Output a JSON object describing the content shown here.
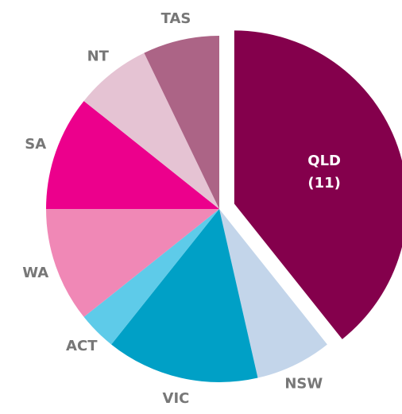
{
  "chart_data": {
    "type": "pie",
    "categories": [
      "QLD",
      "NSW",
      "VIC",
      "ACT",
      "WA",
      "SA",
      "NT",
      "TAS"
    ],
    "values": [
      11,
      2,
      4,
      1,
      3,
      3,
      2,
      2
    ],
    "value_labels": [
      "(11)",
      null,
      null,
      null,
      null,
      null,
      null,
      null
    ],
    "colors": [
      "#84004c",
      "#c3d5ea",
      "#00a0c6",
      "#5ecbe9",
      "#f088b6",
      "#ec008c",
      "#e5c3d3",
      "#ac6486"
    ],
    "exploded": [
      "QLD"
    ]
  }
}
